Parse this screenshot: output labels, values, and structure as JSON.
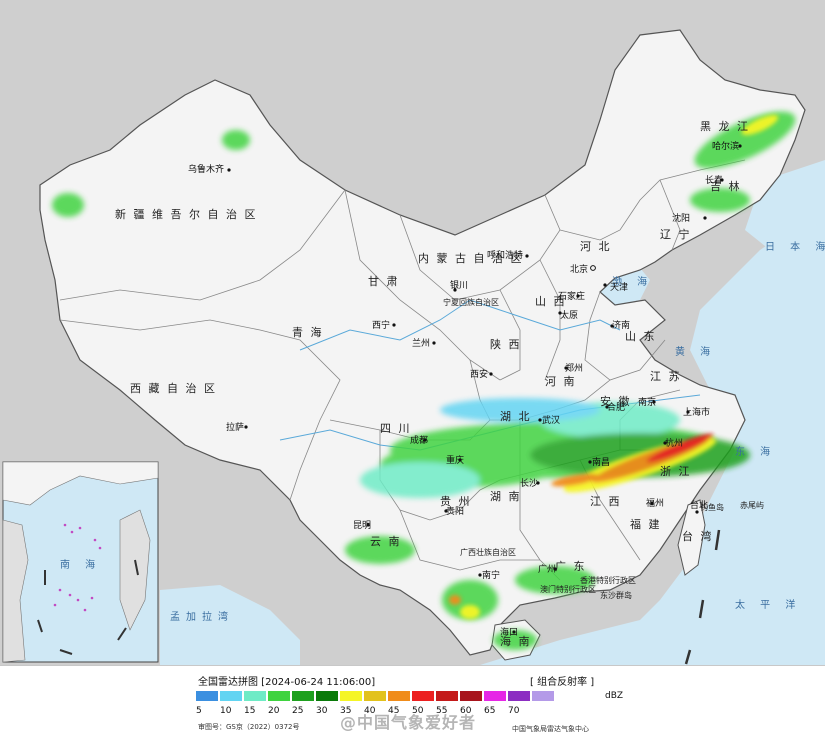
{
  "map": {
    "regions": {
      "xinjiang": "新 疆 维 吾 尔 自 治 区",
      "tibet": "西 藏 自 治 区",
      "qinghai": "青 海",
      "gansu": "甘 肃",
      "neimenggu": "内 蒙 古 自 治 区",
      "ningxia": "宁夏回族自治区",
      "shaanxi": "陕 西",
      "shanxi": "山 西",
      "hebei": "河 北",
      "shandong": "山 东",
      "henan": "河 南",
      "jiangsu": "江 苏",
      "sichuan": "四 川",
      "chongqing": "重庆",
      "hubei": "湖 北",
      "anhui": "安 徽",
      "hunan": "湖 南",
      "jiangxi": "江 西",
      "zhejiang": "浙 江",
      "fujian": "福 建",
      "guizhou": "贵 州",
      "yunnan": "云 南",
      "guangxi": "广西壮族自治区",
      "guangdong": "广 东",
      "hainan": "海 南",
      "taiwan": "台 湾",
      "heilongjiang": "黑 龙 江",
      "jilin": "吉 林",
      "liaoning": "辽 宁",
      "hongkong": "香港特别行政区",
      "macau": "澳门特别行政区"
    },
    "cities": {
      "urumqi": "乌鲁木齐",
      "lhasa": "拉萨",
      "xining": "西宁",
      "lanzhou": "兰州",
      "yinchuan": "银川",
      "hohhot": "呼和浩特",
      "beijing": "北京",
      "tianjin": "天津",
      "shijiazhuang": "石家庄",
      "taiyuan": "太原",
      "jinan": "济南",
      "zhengzhou": "郑州",
      "xian": "西安",
      "chengdu": "成都",
      "chongqing": "重庆",
      "wuhan": "武汉",
      "hefei": "合肥",
      "nanjing": "南京",
      "shanghai": "上海市",
      "hangzhou": "杭州",
      "changsha": "长沙",
      "nanchang": "南昌",
      "fuzhou": "福州",
      "guiyang": "贵阳",
      "kunming": "昆明",
      "nanning": "南宁",
      "guangzhou": "广州",
      "haikou": "海口",
      "taibei": "台北",
      "shenyang": "沈阳",
      "changchun": "长春",
      "harbin": "哈尔滨"
    },
    "seas": {
      "bohai": "渤 海",
      "yellow": "黄 海",
      "east": "东 海",
      "south": "南 海",
      "pacific": "太 平 洋",
      "japan": "日 本 海",
      "bengal": "孟加拉湾"
    },
    "islands": {
      "diaoyu": "钓鱼岛",
      "chiwei": "赤尾屿",
      "dongsha": "东沙群岛"
    }
  },
  "legend": {
    "title": "全国雷达拼图 [2024-06-24 11:06:00]",
    "product": "[ 组合反射率 ]",
    "unit": "dBZ",
    "ticks": [
      "5",
      "10",
      "15",
      "20",
      "25",
      "30",
      "35",
      "40",
      "45",
      "50",
      "55",
      "60",
      "65",
      "70"
    ],
    "colors": [
      "#3b8fe0",
      "#62d4f2",
      "#6eebc6",
      "#3fd33f",
      "#1ea01e",
      "#0a7a0a",
      "#f5f526",
      "#e2c21c",
      "#f08c1a",
      "#ec2020",
      "#c41a1a",
      "#a8141c",
      "#e626e6",
      "#8c2ec2",
      "#b49ae8"
    ],
    "approval": "审图号：GS京（2022）0372号",
    "agency": "中国气象局雷达气象中心",
    "watermark": "@中国气象爱好者"
  }
}
